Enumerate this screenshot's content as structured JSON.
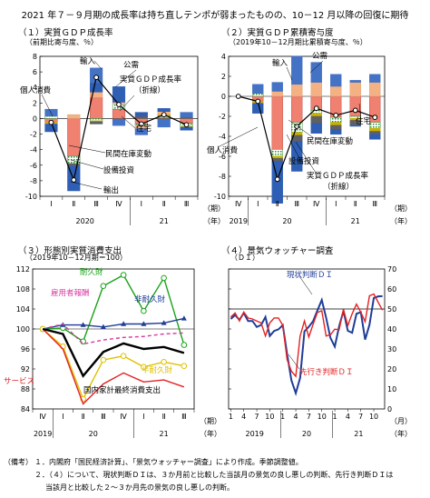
{
  "figure_title": "2021 年７－９月期の成長率は持ち直しテンポが弱まったものの、10－12 月以降の回復に期待",
  "panels": {
    "p1": {
      "title": "（１）実質ＧＤＰ成長率",
      "unit": "（前期比寄与度、％）"
    },
    "p2": {
      "title": "（２）実質ＧＤＰ累積寄与度",
      "unit": "（2019年10－12月期比累積寄与度、％）"
    },
    "p3": {
      "title": "（３）形態別実質消費支出",
      "unit": "（2019年10－12月期＝100）"
    },
    "p4": {
      "title": "（４）景気ウォッチャー調査",
      "unit": "（ＤＩ）"
    }
  },
  "axis_captions": {
    "period": "（期）",
    "year": "（年）",
    "month": "（月）"
  },
  "notes": {
    "label": "（備考）",
    "line1": "１．内閣府「国民経済計算」、「景気ウォッチャー調査」により作成。季節調整値。",
    "line2": "２．（４）について、現状判断ＤＩは、３か月前と比較した当該月の景気の良し悪しの判断、先行き判断ＤＩは",
    "line3": "当該月と比較した２～３か月先の景気の良し悪しの判断。"
  },
  "colors": {
    "personal": "#f08070",
    "capex": "#2e8b2e",
    "housing": "#c8b400",
    "private_inventory": "#606060",
    "public": "#f4b183",
    "exports": "#2f5fb4",
    "imports": "#4472c4",
    "gdp": "#000000",
    "durable": "#19a319",
    "semi_durable": "#e0c000",
    "nondurable": "#1f3d99",
    "services": "#e32222",
    "total_consumption": "#000000",
    "employee_comp": "#d63aa0",
    "current_di": "#1f3d99",
    "outlook_di": "#e32222"
  },
  "chart_data": [
    {
      "id": "gdp_growth",
      "type": "bar",
      "title": "（１）実質ＧＤＰ成長率",
      "ylabel": "（前期比寄与度、％）",
      "ylim": [
        -10,
        8
      ],
      "yticks": [
        -10,
        -8,
        -6,
        -4,
        -2,
        0,
        2,
        4,
        6,
        8
      ],
      "categories": [
        "Ⅰ",
        "Ⅱ",
        "Ⅲ",
        "Ⅳ",
        "Ⅰ",
        "Ⅱ",
        "Ⅲ"
      ],
      "year_labels": [
        {
          "label": "2020",
          "span": [
            0,
            3
          ]
        },
        {
          "label": "21",
          "span": [
            4,
            6
          ]
        }
      ],
      "series": [
        {
          "name": "個人消費",
          "values": [
            -0.5,
            -4.8,
            2.7,
            1.2,
            -0.7,
            0.1,
            -0.6
          ]
        },
        {
          "name": "設備投資",
          "values": [
            0.3,
            -1.0,
            -0.3,
            0.7,
            -0.2,
            0.3,
            -0.4
          ]
        },
        {
          "name": "住宅",
          "values": [
            -0.2,
            0.0,
            -0.1,
            0.0,
            0.0,
            0.1,
            -0.1
          ]
        },
        {
          "name": "民間在庫変動",
          "values": [
            0.0,
            -0.3,
            -0.3,
            -0.1,
            0.3,
            -0.1,
            0.2
          ]
        },
        {
          "name": "公需",
          "values": [
            0.0,
            0.5,
            0.7,
            0.2,
            -0.4,
            0.4,
            0.0
          ]
        },
        {
          "name": "輸出",
          "values": [
            -1.0,
            -3.2,
            1.2,
            2.0,
            0.5,
            0.4,
            -0.4
          ]
        },
        {
          "name": "輸入",
          "values": [
            0.9,
            0.0,
            1.9,
            -0.8,
            -0.8,
            -1.0,
            0.6
          ]
        }
      ],
      "line": {
        "name": "実質ＧＤＰ成長率（折線）",
        "values": [
          -0.5,
          -7.9,
          5.3,
          1.8,
          -0.7,
          0.5,
          -0.8
        ]
      }
    },
    {
      "id": "gdp_cumulative",
      "type": "bar",
      "title": "（２）実質ＧＤＰ累積寄与度",
      "ylabel": "（2019年10－12月期比累積寄与度、％）",
      "ylim": [
        -10,
        4
      ],
      "yticks": [
        -10,
        -8,
        -6,
        -4,
        -2,
        0,
        2,
        4
      ],
      "categories": [
        "Ⅳ",
        "Ⅰ",
        "Ⅱ",
        "Ⅲ",
        "Ⅳ",
        "Ⅰ",
        "Ⅱ",
        "Ⅲ"
      ],
      "year_labels": [
        {
          "label": "2019",
          "span": [
            0,
            0
          ]
        },
        {
          "label": "20",
          "span": [
            1,
            4
          ]
        },
        {
          "label": "21",
          "span": [
            5,
            7
          ]
        }
      ],
      "series": [
        {
          "name": "個人消費",
          "values": [
            0,
            -0.5,
            -5.3,
            -2.6,
            -1.4,
            -2.1,
            -2.0,
            -2.6
          ]
        },
        {
          "name": "設備投資",
          "values": [
            0,
            0.3,
            -0.7,
            -1.0,
            -0.3,
            -0.5,
            -0.2,
            -0.6
          ]
        },
        {
          "name": "住宅",
          "values": [
            0,
            -0.2,
            -0.2,
            -0.3,
            -0.3,
            -0.3,
            -0.2,
            -0.3
          ]
        },
        {
          "name": "民間在庫変動",
          "values": [
            0,
            0.0,
            -0.3,
            -0.6,
            -0.7,
            -0.4,
            -0.5,
            -0.3
          ]
        },
        {
          "name": "公需",
          "values": [
            0,
            0.0,
            0.5,
            1.2,
            1.4,
            1.0,
            1.4,
            1.4
          ]
        },
        {
          "name": "輸出",
          "values": [
            0,
            -1.0,
            -4.2,
            -3.0,
            -1.0,
            -0.5,
            -0.1,
            -0.5
          ]
        },
        {
          "name": "輸入",
          "values": [
            0,
            0.9,
            0.9,
            2.8,
            2.0,
            1.2,
            0.2,
            0.8
          ]
        }
      ],
      "line": {
        "name": "実質ＧＤＰ成長率（折線）",
        "values": [
          0,
          -0.5,
          -8.3,
          -3.0,
          -1.2,
          -1.9,
          -1.4,
          -2.1
        ]
      }
    },
    {
      "id": "consumption",
      "type": "line",
      "title": "（３）形態別実質消費支出",
      "ylabel": "（2019年10－12月期＝100）",
      "ylim": [
        84,
        112
      ],
      "yticks": [
        84,
        88,
        92,
        96,
        100,
        104,
        108,
        112
      ],
      "categories": [
        "Ⅳ",
        "Ⅰ",
        "Ⅱ",
        "Ⅲ",
        "Ⅳ",
        "Ⅰ",
        "Ⅱ",
        "Ⅲ"
      ],
      "year_labels": [
        {
          "label": "2019",
          "span": [
            0,
            0
          ]
        },
        {
          "label": "20",
          "span": [
            1,
            4
          ]
        },
        {
          "label": "21",
          "span": [
            5,
            7
          ]
        }
      ],
      "series": [
        {
          "name": "耐久財",
          "values": [
            100,
            100.2,
            97.5,
            108.6,
            110.8,
            103.6,
            110.2,
            96.8
          ]
        },
        {
          "name": "非耐久財",
          "values": [
            100,
            100.8,
            100.8,
            100.4,
            101.0,
            101.0,
            101.2,
            102.1
          ]
        },
        {
          "name": "雇用者報酬",
          "values": [
            100,
            101.0,
            97.0,
            97.8,
            98.3,
            98.5,
            99.0,
            99.2
          ]
        },
        {
          "name": "半耐久財",
          "values": [
            100,
            96.5,
            86.0,
            93.8,
            94.6,
            92.4,
            93.4,
            92.6
          ]
        },
        {
          "name": "サービス",
          "values": [
            100,
            96.0,
            85.0,
            89.0,
            91.2,
            89.4,
            89.8,
            88.4
          ]
        },
        {
          "name": "国内家計最終消費支出",
          "values": [
            100,
            99.0,
            90.6,
            95.4,
            97.1,
            96.0,
            96.4,
            95.2
          ]
        }
      ]
    },
    {
      "id": "economy_watchers",
      "type": "line",
      "title": "（４）景気ウォッチャー調査",
      "ylabel": "（ＤＩ）",
      "ylim": [
        0,
        70
      ],
      "yticks": [
        0,
        10,
        20,
        30,
        40,
        50,
        60,
        70
      ],
      "reference_line": 50,
      "x_tick_labels": [
        "1",
        "4",
        "7",
        "10",
        "1",
        "4",
        "7",
        "10",
        "1",
        "4",
        "7",
        "10"
      ],
      "year_labels": [
        {
          "label": "2019",
          "span": [
            0,
            11
          ]
        },
        {
          "label": "20",
          "span": [
            12,
            23
          ]
        },
        {
          "label": "21",
          "span": [
            24,
            35
          ]
        }
      ],
      "series": [
        {
          "name": "現状判断ＤＩ",
          "values": [
            45,
            47,
            44.5,
            48,
            44,
            44,
            41,
            42,
            46,
            36.5,
            39,
            39.8,
            41.9,
            27.4,
            14.2,
            7.9,
            15.5,
            38.8,
            41.1,
            43.9,
            49.3,
            54.5,
            45.6,
            35.5,
            31.2,
            41.3,
            49.0,
            39.1,
            38.1,
            47.6,
            48.4,
            34.7,
            42.1,
            55.5,
            56.3,
            56.4
          ]
        },
        {
          "name": "先行き判断ＤＩ",
          "values": [
            46,
            48,
            44,
            48.5,
            45.5,
            45,
            44,
            43,
            36.5,
            43,
            45.5,
            45.5,
            41.8,
            24.6,
            18.8,
            16.3,
            36.5,
            44.0,
            36.0,
            42.4,
            48.3,
            49.1,
            36.5,
            37.1,
            39.9,
            39.6,
            49.8,
            41.7,
            47.6,
            52.4,
            48.4,
            43.7,
            56.6,
            57.5,
            53.4,
            49.4
          ]
        }
      ]
    }
  ]
}
